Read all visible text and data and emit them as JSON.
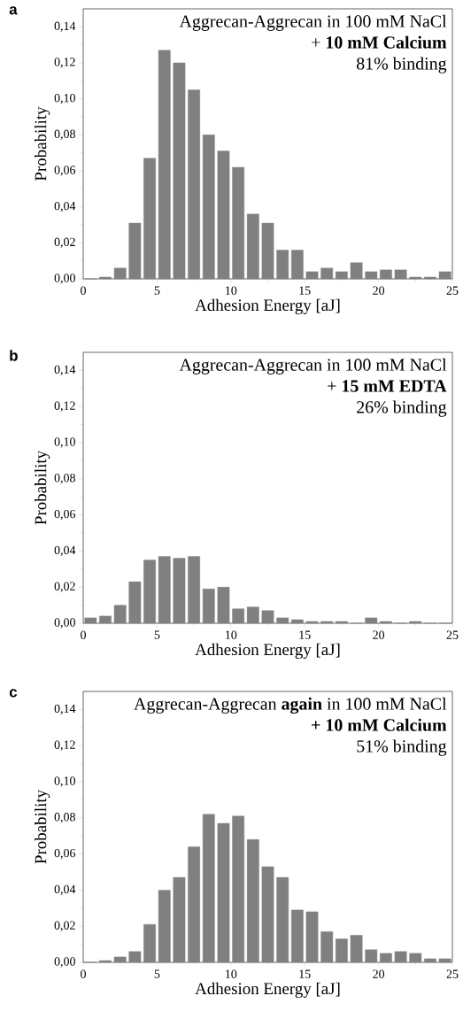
{
  "chart_data": [
    {
      "type": "histogram",
      "title": "a",
      "xlabel": "Adhesion Energy [aJ]",
      "ylabel": "Probability",
      "annotations": [
        "Aggrecan-Aggrecan in 100 mM NaCl",
        "+ **10 mM Calcium**",
        "81% binding"
      ],
      "bins": [
        0,
        1,
        2,
        3,
        4,
        5,
        6,
        7,
        8,
        9,
        10,
        11,
        12,
        13,
        14,
        15,
        16,
        17,
        18,
        19,
        20,
        21,
        22,
        23,
        24,
        25
      ],
      "values": [
        0,
        0.001,
        0.006,
        0.031,
        0.067,
        0.127,
        0.12,
        0.105,
        0.08,
        0.071,
        0.062,
        0.036,
        0.031,
        0.016,
        0.016,
        0.004,
        0.006,
        0.004,
        0.009,
        0.004,
        0.005,
        0.005,
        0.001,
        0.001,
        0.004
      ],
      "color": "#808080",
      "xlim": [
        0,
        25
      ],
      "ylim": [
        0,
        0.15
      ],
      "xticks": [
        0,
        5,
        10,
        15,
        20,
        25
      ],
      "yticks": [
        {
          "value": 0,
          "label": "0,00"
        },
        {
          "value": 0.02,
          "label": "0,02"
        },
        {
          "value": 0.04,
          "label": "0,04"
        },
        {
          "value": 0.06,
          "label": "0,06"
        },
        {
          "value": 0.08,
          "label": "0,08"
        },
        {
          "value": 0.1,
          "label": "0,10"
        },
        {
          "value": 0.12,
          "label": "0,12"
        },
        {
          "value": 0.14,
          "label": "0,14"
        }
      ]
    },
    {
      "type": "histogram",
      "title": "b",
      "xlabel": "Adhesion Energy [aJ]",
      "ylabel": "Probability",
      "annotations": [
        "Aggrecan-Aggrecan in 100 mM NaCl",
        "+ **15 mM  EDTA**",
        "26% binding"
      ],
      "bins": [
        0,
        1,
        2,
        3,
        4,
        5,
        6,
        7,
        8,
        9,
        10,
        11,
        12,
        13,
        14,
        15,
        16,
        17,
        18,
        19,
        20,
        21,
        22,
        23,
        24,
        25
      ],
      "values": [
        0.003,
        0.004,
        0.01,
        0.023,
        0.035,
        0.037,
        0.036,
        0.037,
        0.019,
        0.02,
        0.008,
        0.009,
        0.007,
        0.003,
        0.002,
        0.001,
        0.001,
        0.001,
        0,
        0.003,
        0.001,
        0,
        0.001,
        0,
        0
      ],
      "color": "#808080",
      "xlim": [
        0,
        25
      ],
      "ylim": [
        0,
        0.15
      ],
      "xticks": [
        0,
        5,
        10,
        15,
        20,
        25
      ],
      "yticks": [
        {
          "value": 0,
          "label": "0,00"
        },
        {
          "value": 0.02,
          "label": "0,02"
        },
        {
          "value": 0.04,
          "label": "0,04"
        },
        {
          "value": 0.06,
          "label": "0,06"
        },
        {
          "value": 0.08,
          "label": "0,08"
        },
        {
          "value": 0.1,
          "label": "0,10"
        },
        {
          "value": 0.12,
          "label": "0,12"
        },
        {
          "value": 0.14,
          "label": "0,14"
        }
      ]
    },
    {
      "type": "histogram",
      "title": "c",
      "xlabel": "Adhesion Energy [aJ]",
      "ylabel": "Probability",
      "annotations": [
        "Aggrecan-Aggrecan **again** in 100 mM NaCl",
        "**+ 10 mM Calcium**",
        "51% binding"
      ],
      "bins": [
        0,
        1,
        2,
        3,
        4,
        5,
        6,
        7,
        8,
        9,
        10,
        11,
        12,
        13,
        14,
        15,
        16,
        17,
        18,
        19,
        20,
        21,
        22,
        23,
        24,
        25
      ],
      "values": [
        0,
        0.001,
        0.003,
        0.006,
        0.021,
        0.04,
        0.047,
        0.064,
        0.082,
        0.077,
        0.081,
        0.068,
        0.053,
        0.047,
        0.029,
        0.028,
        0.017,
        0.013,
        0.015,
        0.007,
        0.005,
        0.006,
        0.005,
        0.002,
        0.002
      ],
      "color": "#808080",
      "xlim": [
        0,
        25
      ],
      "ylim": [
        0,
        0.15
      ],
      "xticks": [
        0,
        5,
        10,
        15,
        20,
        25
      ],
      "yticks": [
        {
          "value": 0,
          "label": "0,00"
        },
        {
          "value": 0.02,
          "label": "0,02"
        },
        {
          "value": 0.04,
          "label": "0,04"
        },
        {
          "value": 0.06,
          "label": "0,06"
        },
        {
          "value": 0.08,
          "label": "0,08"
        },
        {
          "value": 0.1,
          "label": "0,10"
        },
        {
          "value": 0.12,
          "label": "0,12"
        },
        {
          "value": 0.14,
          "label": "0,14"
        }
      ]
    }
  ]
}
